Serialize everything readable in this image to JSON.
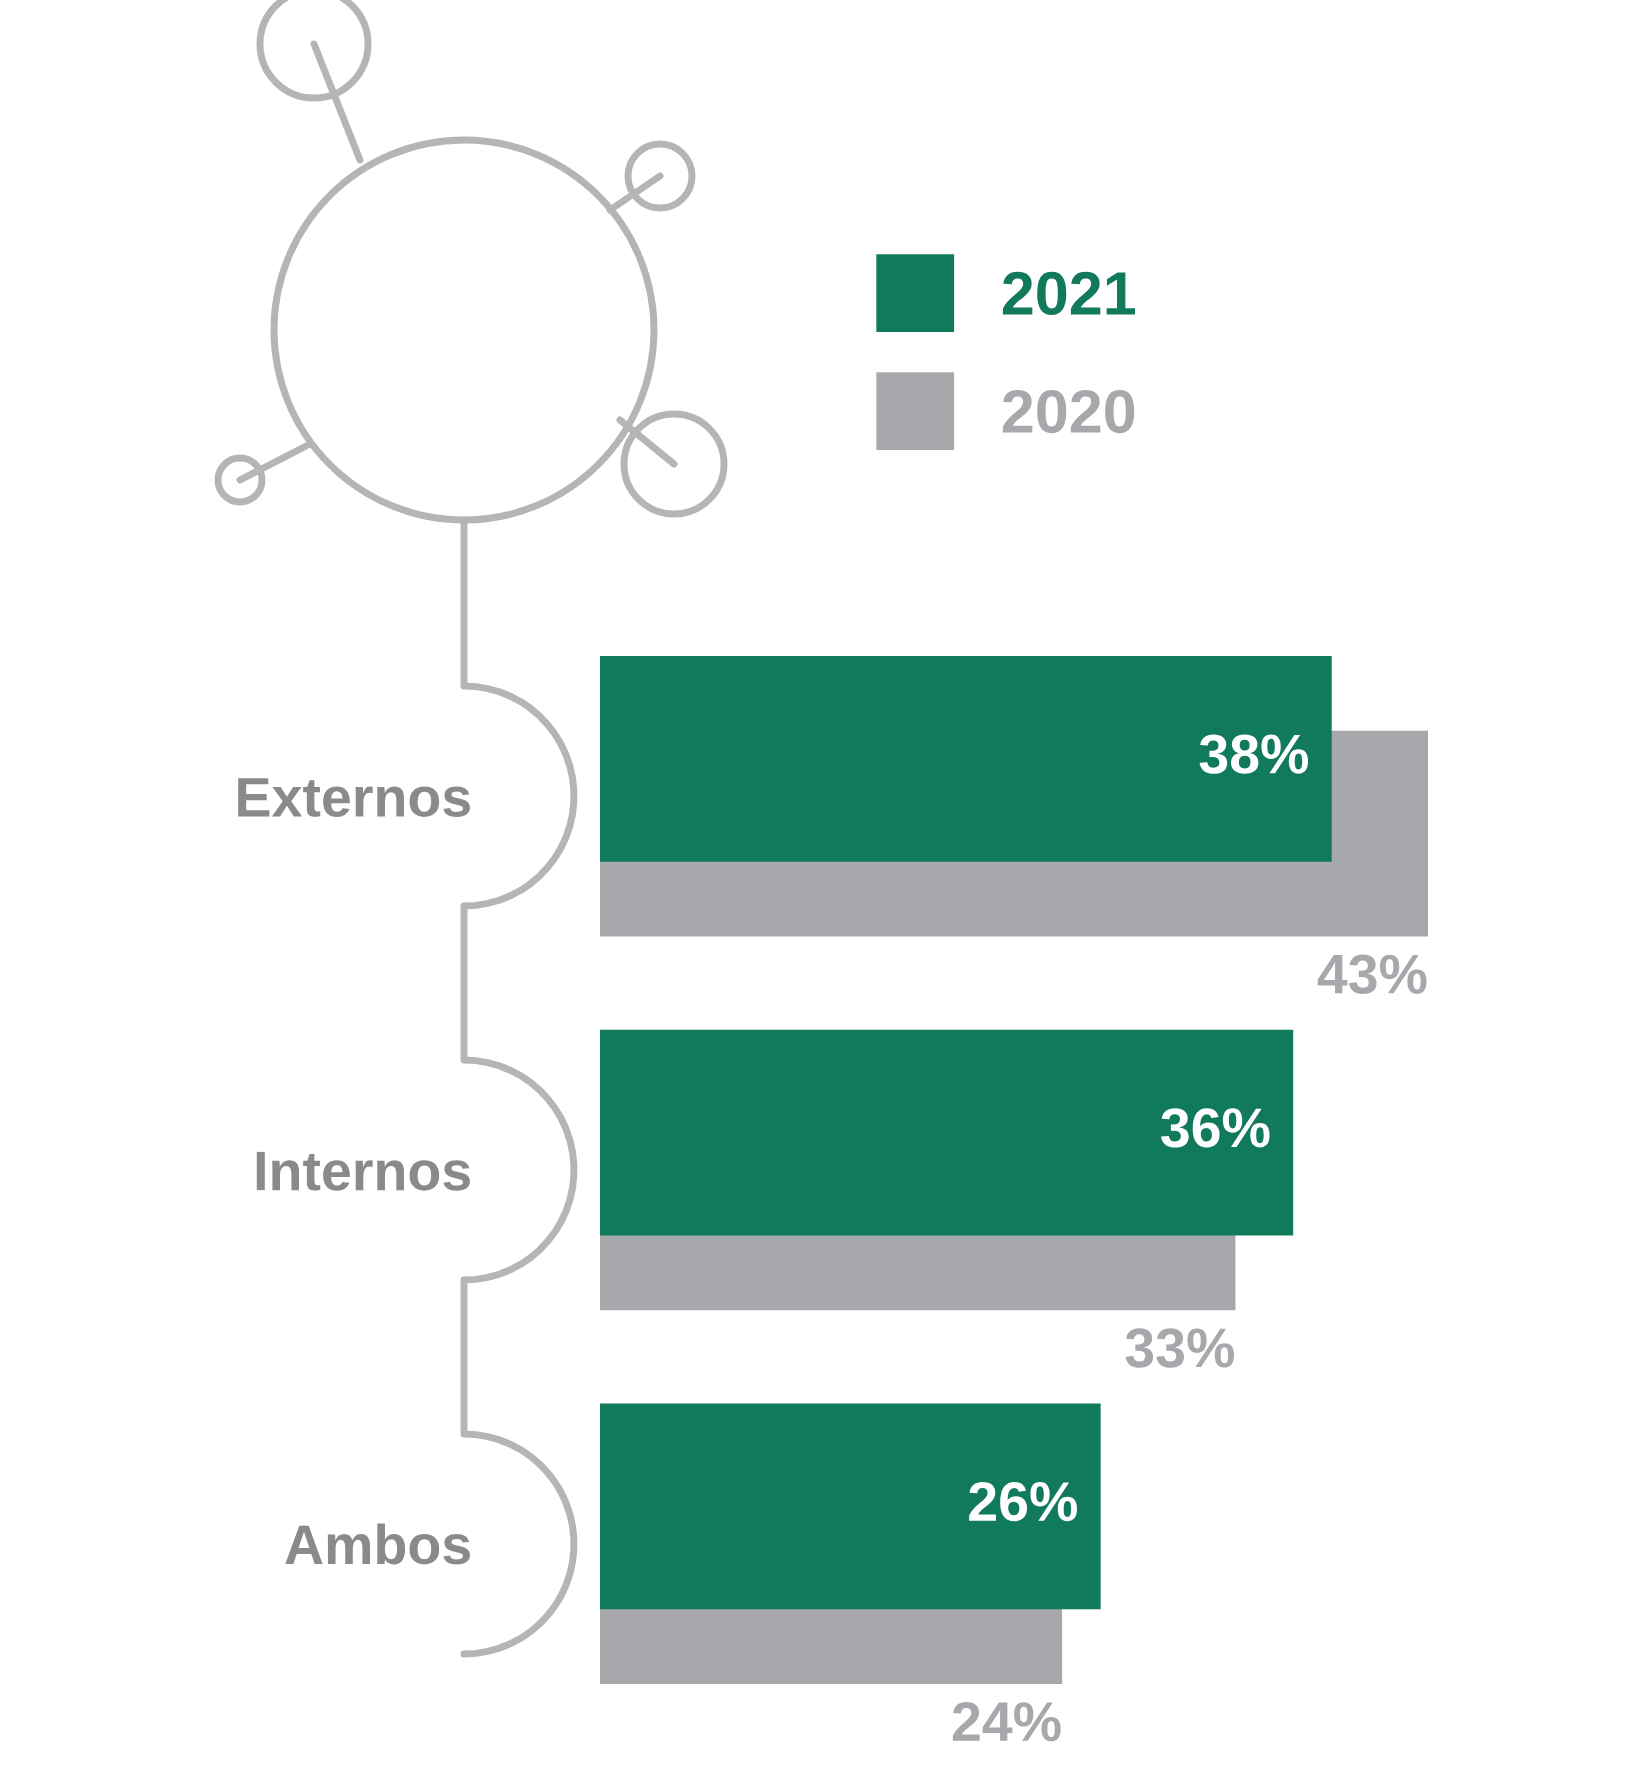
{
  "chart_data": {
    "type": "bar",
    "orientation": "horizontal",
    "categories": [
      "Externos",
      "Internos",
      "Ambos"
    ],
    "series": [
      {
        "name": "2021",
        "color": "#127a5c",
        "values": [
          38,
          36,
          26
        ],
        "value_labels": [
          "38%",
          "36%",
          "26%"
        ]
      },
      {
        "name": "2020",
        "color": "#a7a8ab",
        "values": [
          43,
          33,
          24
        ],
        "value_labels": [
          "43%",
          "33%",
          "24%"
        ]
      }
    ],
    "legend": "top",
    "tick_labels": "y",
    "grid": false
  }
}
